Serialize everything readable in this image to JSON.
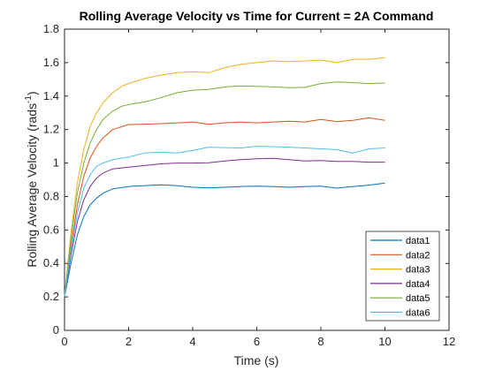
{
  "chart_data": {
    "type": "line",
    "title": "Rolling Average Velocity vs Time for Current = 2A Command",
    "xlabel": "Time (s)",
    "ylabel_main": "Rolling Average Velocity (rads",
    "ylabel_sup": "-1",
    "ylabel_end": ")",
    "xlim": [
      0,
      12
    ],
    "ylim": [
      0,
      1.8
    ],
    "xticks": [
      0,
      2,
      4,
      6,
      8,
      10,
      12
    ],
    "yticks": [
      0,
      0.2,
      0.4,
      0.6,
      0.8,
      1,
      1.2,
      1.4,
      1.6,
      1.8
    ],
    "xtick_labels": [
      "0",
      "2",
      "4",
      "6",
      "8",
      "10",
      "12"
    ],
    "ytick_labels": [
      "0",
      "0.2",
      "0.4",
      "0.6",
      "0.8",
      "1",
      "1.2",
      "1.4",
      "1.6",
      "1.8"
    ],
    "grid": false,
    "legend_position": "bottom-right",
    "series": [
      {
        "name": "data1",
        "color": "#0072BD",
        "x": [
          0,
          0.2,
          0.4,
          0.6,
          0.8,
          1.0,
          1.2,
          1.5,
          2.0,
          2.5,
          3.0,
          3.5,
          4.0,
          4.5,
          5.0,
          5.5,
          6.0,
          6.5,
          7.0,
          7.5,
          8.0,
          8.5,
          9.0,
          9.5,
          10.0
        ],
        "y": [
          0.2,
          0.4,
          0.57,
          0.68,
          0.75,
          0.79,
          0.82,
          0.845,
          0.86,
          0.865,
          0.87,
          0.865,
          0.855,
          0.852,
          0.855,
          0.86,
          0.862,
          0.86,
          0.855,
          0.86,
          0.862,
          0.85,
          0.86,
          0.868,
          0.88
        ]
      },
      {
        "name": "data2",
        "color": "#D95319",
        "x": [
          0,
          0.2,
          0.4,
          0.6,
          0.8,
          1.0,
          1.2,
          1.5,
          2.0,
          2.5,
          3.0,
          3.5,
          4.0,
          4.5,
          5.0,
          5.5,
          6.0,
          6.5,
          7.0,
          7.5,
          8.0,
          8.5,
          9.0,
          9.5,
          10.0
        ],
        "y": [
          0.2,
          0.5,
          0.75,
          0.92,
          1.03,
          1.1,
          1.15,
          1.2,
          1.23,
          1.232,
          1.235,
          1.24,
          1.245,
          1.232,
          1.24,
          1.245,
          1.24,
          1.245,
          1.25,
          1.245,
          1.26,
          1.248,
          1.255,
          1.27,
          1.255
        ]
      },
      {
        "name": "data3",
        "color": "#EDB120",
        "x": [
          0,
          0.2,
          0.4,
          0.6,
          0.8,
          1.0,
          1.2,
          1.5,
          1.8,
          2.0,
          2.5,
          3.0,
          3.5,
          4.0,
          4.5,
          5.0,
          5.5,
          6.0,
          6.5,
          7.0,
          7.5,
          8.0,
          8.5,
          9.0,
          9.5,
          10.0
        ],
        "y": [
          0.2,
          0.58,
          0.88,
          1.08,
          1.22,
          1.3,
          1.36,
          1.42,
          1.46,
          1.475,
          1.505,
          1.525,
          1.54,
          1.545,
          1.54,
          1.57,
          1.59,
          1.6,
          1.61,
          1.605,
          1.61,
          1.615,
          1.6,
          1.62,
          1.62,
          1.63
        ]
      },
      {
        "name": "data4",
        "color": "#7E2F8E",
        "x": [
          0,
          0.2,
          0.4,
          0.6,
          0.8,
          1.0,
          1.2,
          1.5,
          2.0,
          2.5,
          3.0,
          3.5,
          4.0,
          4.5,
          5.0,
          5.5,
          6.0,
          6.5,
          7.0,
          7.5,
          8.0,
          8.5,
          9.0,
          9.5,
          10.0
        ],
        "y": [
          0.2,
          0.45,
          0.65,
          0.78,
          0.86,
          0.91,
          0.94,
          0.965,
          0.975,
          0.985,
          0.995,
          1.0,
          1.0,
          1.002,
          1.012,
          1.02,
          1.025,
          1.028,
          1.02,
          1.012,
          1.015,
          1.01,
          1.01,
          1.005,
          1.005
        ]
      },
      {
        "name": "data5",
        "color": "#77AC30",
        "x": [
          0,
          0.2,
          0.4,
          0.6,
          0.8,
          1.0,
          1.2,
          1.5,
          1.8,
          2.0,
          2.5,
          3.0,
          3.5,
          4.0,
          4.5,
          5.0,
          5.5,
          6.0,
          6.5,
          7.0,
          7.5,
          8.0,
          8.5,
          9.0,
          9.5,
          10.0
        ],
        "y": [
          0.2,
          0.55,
          0.82,
          1.0,
          1.12,
          1.2,
          1.26,
          1.31,
          1.34,
          1.35,
          1.365,
          1.39,
          1.42,
          1.435,
          1.44,
          1.455,
          1.46,
          1.458,
          1.455,
          1.45,
          1.452,
          1.475,
          1.485,
          1.48,
          1.475,
          1.478
        ]
      },
      {
        "name": "data6",
        "color": "#4DBEEE",
        "x": [
          0,
          0.2,
          0.4,
          0.6,
          0.8,
          1.0,
          1.2,
          1.5,
          2.0,
          2.5,
          3.0,
          3.5,
          4.0,
          4.5,
          5.0,
          5.5,
          6.0,
          6.5,
          7.0,
          7.5,
          8.0,
          8.5,
          9.0,
          9.5,
          10.0
        ],
        "y": [
          0.2,
          0.48,
          0.7,
          0.85,
          0.93,
          0.98,
          1.0,
          1.02,
          1.035,
          1.06,
          1.065,
          1.06,
          1.075,
          1.095,
          1.092,
          1.09,
          1.1,
          1.098,
          1.095,
          1.09,
          1.085,
          1.08,
          1.06,
          1.085,
          1.09
        ]
      }
    ]
  }
}
